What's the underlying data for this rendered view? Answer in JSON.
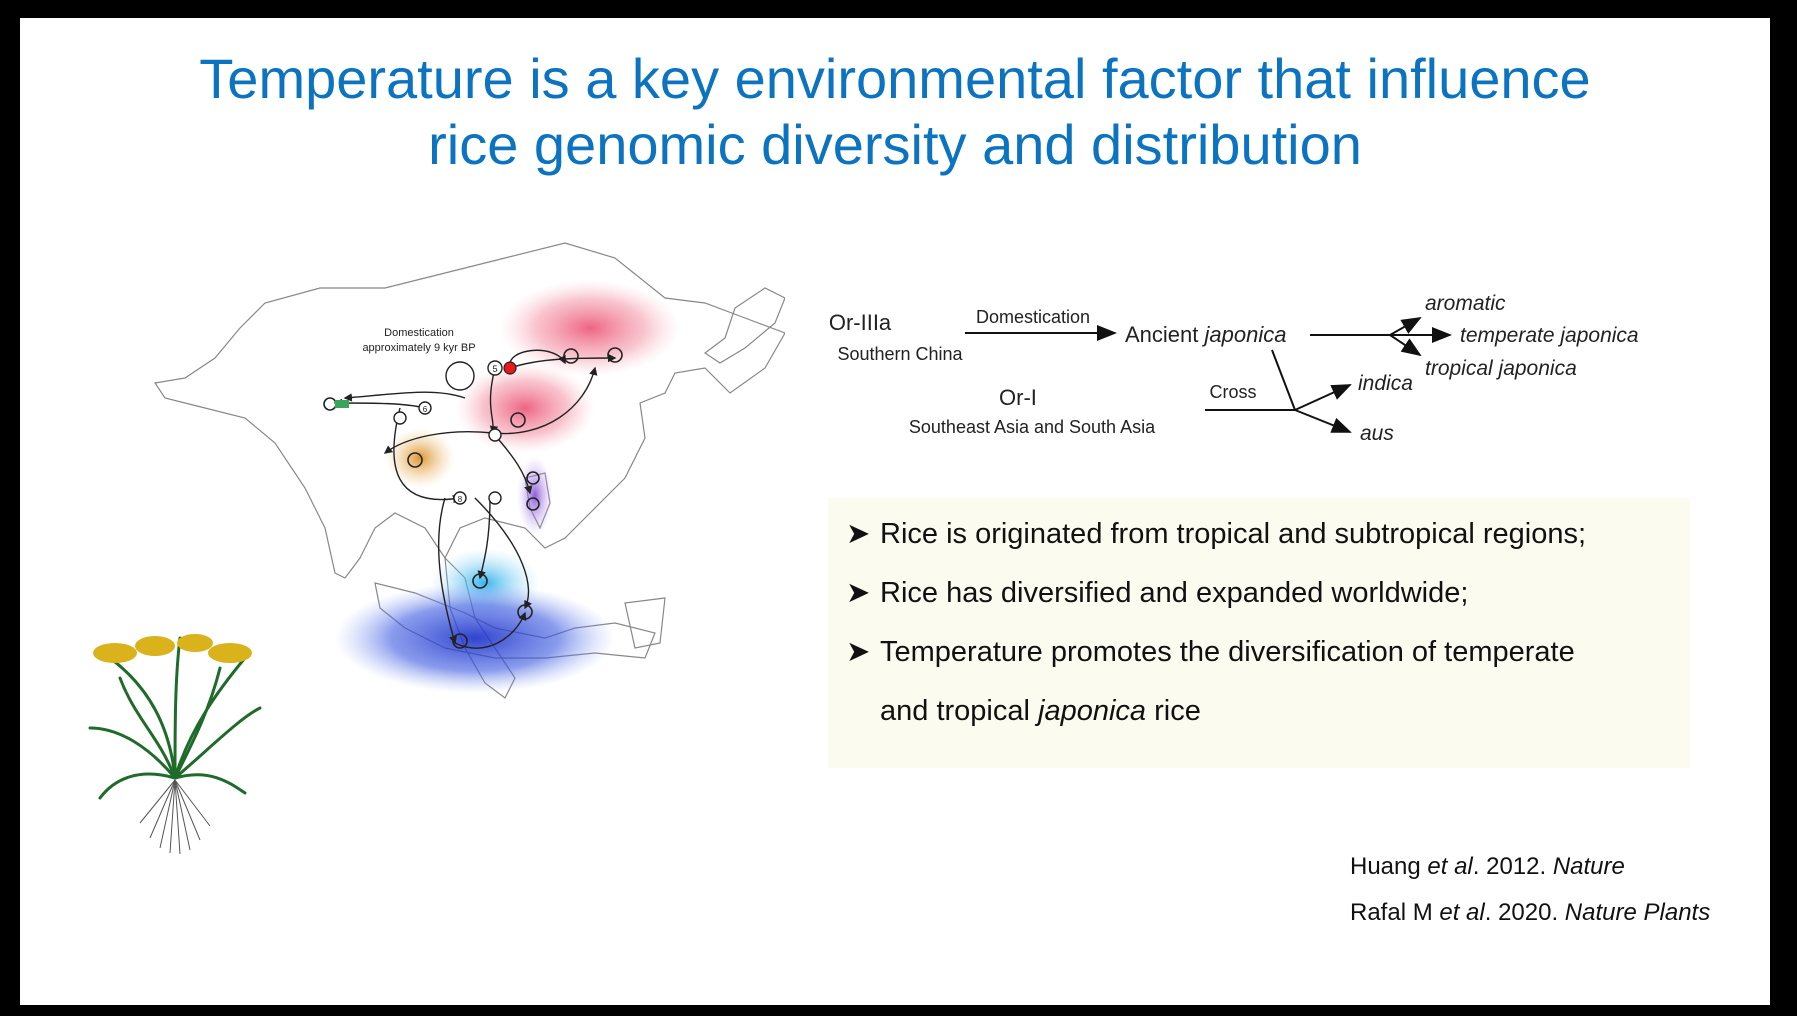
{
  "slide": {
    "title_line1": "Temperature is a key environmental factor that influence",
    "title_line2": "rice genomic diversity and distribution"
  },
  "map": {
    "label_line1": "Domestication",
    "label_line2": "approximately 9 kyr BP",
    "node_labels": [
      "5",
      "6",
      "8"
    ]
  },
  "diagram": {
    "or3": "Or-IIIa",
    "or3_region": "Southern China",
    "domestication": "Domestication",
    "ancient": "Ancient ",
    "japonica": "japonica",
    "aromatic": "aromatic",
    "temperate": "temperate japonica",
    "tropical": "tropical japonica",
    "or1": "Or-I",
    "or1_region": "Southeast Asia and South Asia",
    "cross": "Cross",
    "indica": "indica",
    "aus": "aus"
  },
  "bullets": {
    "marker": "➤",
    "b1": "Rice is originated from tropical and subtropical regions;",
    "b2": "Rice has diversified and expanded worldwide;",
    "b3": "Temperature promotes the diversification of temperate",
    "b3_cont_1": "and tropical ",
    "b3_cont_italic": "japonica",
    "b3_cont_2": " rice"
  },
  "citations": {
    "c1_author": "Huang ",
    "c1_etal": "et al",
    "c1_year": ". 2012. ",
    "c1_journal": "Nature",
    "c2_author": "Rafal M ",
    "c2_etal": "et al",
    "c2_year": ". 2020. ",
    "c2_journal": "Nature Plants"
  }
}
